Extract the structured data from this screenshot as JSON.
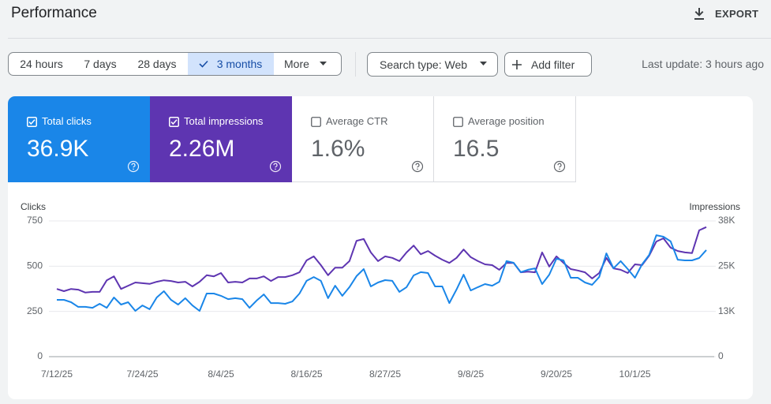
{
  "header": {
    "title": "Performance",
    "export": "EXPORT"
  },
  "filters": {
    "ranges": [
      "24 hours",
      "7 days",
      "28 days",
      "3 months",
      "More"
    ],
    "search_type": "Search type: Web",
    "add_filter": "Add filter",
    "last_update": "Last update: 3 hours ago"
  },
  "metrics": [
    {
      "label": "Total clicks",
      "value": "36.9K"
    },
    {
      "label": "Total impressions",
      "value": "2.26M"
    },
    {
      "label": "Average CTR",
      "value": "1.6%"
    },
    {
      "label": "Average position",
      "value": "16.5"
    }
  ],
  "chart_data": {
    "type": "line",
    "y_label": "Clicks",
    "y2_label": "Impressions",
    "categories": [
      "7/12/25",
      null,
      null,
      null,
      null,
      null,
      null,
      null,
      null,
      null,
      null,
      null,
      "7/24/25",
      null,
      null,
      null,
      null,
      null,
      null,
      null,
      null,
      null,
      null,
      "8/4/25",
      null,
      null,
      null,
      null,
      null,
      null,
      null,
      null,
      null,
      null,
      null,
      "8/16/25",
      null,
      null,
      null,
      null,
      null,
      null,
      null,
      null,
      null,
      null,
      "8/27/25",
      null,
      null,
      null,
      null,
      null,
      null,
      null,
      null,
      null,
      null,
      null,
      "9/8/25",
      null,
      null,
      null,
      null,
      null,
      null,
      null,
      null,
      null,
      null,
      null,
      "9/20/25",
      null,
      null,
      null,
      null,
      null,
      null,
      null,
      null,
      null,
      null,
      "10/1/25",
      null,
      null,
      null,
      null,
      null,
      null,
      null,
      null,
      null,
      null
    ],
    "ylim": [
      0,
      750
    ],
    "yticks": [
      0,
      250,
      500,
      750
    ],
    "y2lim": [
      0,
      37500
    ],
    "y2ticks": [
      0,
      {
        "value": 12500,
        "label": "13K"
      },
      {
        "value": 25000,
        "label": "25K"
      },
      {
        "value": 37500,
        "label": "38K"
      }
    ],
    "grid": true,
    "series": [
      {
        "color": "#1a86e8",
        "values": [
          314,
          314,
          301,
          275,
          275,
          270,
          292,
          270,
          327,
          288,
          301,
          253,
          283,
          262,
          327,
          362,
          314,
          288,
          323,
          283,
          253,
          349,
          349,
          336,
          318,
          323,
          318,
          270,
          310,
          344,
          296,
          296,
          292,
          305,
          349,
          419,
          440,
          419,
          323,
          392,
          336,
          384,
          445,
          484,
          388,
          410,
          423,
          419,
          358,
          384,
          449,
          467,
          462,
          388,
          388,
          296,
          371,
          453,
          366,
          384,
          401,
          392,
          414,
          528,
          519,
          467,
          480,
          488,
          401,
          453,
          541,
          532,
          436,
          436,
          410,
          397,
          440,
          571,
          488,
          528,
          484,
          436,
          510,
          562,
          671,
          663,
          637,
          536,
          532,
          532,
          545,
          589
        ]
      },
      {
        "color": "#5e35b1",
        "axis": "y2",
        "values": [
          18700,
          18100,
          18700,
          18500,
          17700,
          17900,
          17900,
          21100,
          22200,
          18700,
          19600,
          20500,
          20300,
          20100,
          20700,
          21100,
          20900,
          20500,
          20700,
          19400,
          20700,
          22500,
          22200,
          23100,
          20500,
          20700,
          20500,
          21600,
          21600,
          22200,
          20900,
          22000,
          22000,
          22500,
          23300,
          26600,
          27700,
          25300,
          22500,
          24600,
          24600,
          26400,
          32000,
          32500,
          28800,
          26400,
          27700,
          27300,
          26400,
          28800,
          30700,
          28300,
          29200,
          27900,
          26800,
          25900,
          27300,
          29600,
          27500,
          26400,
          25500,
          25300,
          24000,
          25900,
          25900,
          23300,
          23500,
          23300,
          28800,
          24900,
          27700,
          25900,
          24200,
          23800,
          23300,
          21600,
          23100,
          27300,
          24400,
          24000,
          23100,
          25500,
          25300,
          27900,
          31800,
          32700,
          30100,
          29200,
          28800,
          28600,
          34900,
          35800
        ]
      }
    ]
  }
}
